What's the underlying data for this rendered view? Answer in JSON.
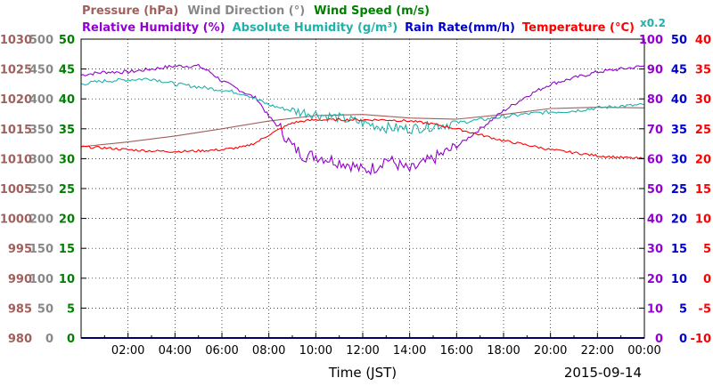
{
  "chart_data": {
    "type": "line",
    "legend": {
      "row1": [
        {
          "key": "pressure",
          "text": "Pressure (hPa)",
          "color": "#a0605c"
        },
        {
          "key": "wind_direction",
          "text": "Wind Direction (°)",
          "color": "#888888"
        },
        {
          "key": "wind_speed",
          "text": "Wind Speed (m/s)",
          "color": "#008000"
        }
      ],
      "row2": [
        {
          "key": "rh",
          "text": "Relative Humidity (%)",
          "color": "#9400d3"
        },
        {
          "key": "ah",
          "text": "Absolute Humidity (g/m³)",
          "color": "#20b2aa"
        },
        {
          "key": "rain",
          "text": "Rain Rate(mm/h)",
          "color": "#0000cc"
        },
        {
          "key": "temp",
          "text": "Temperature (°C)",
          "color": "#ff0000"
        }
      ],
      "ah_scale_note": "x0.2"
    },
    "xlabel": "Time (JST)",
    "date": "2015-09-14",
    "xlim": [
      0,
      24
    ],
    "x_tick_labels": [
      "02:00",
      "04:00",
      "06:00",
      "08:00",
      "10:00",
      "12:00",
      "14:00",
      "16:00",
      "18:00",
      "20:00",
      "22:00",
      "00:00"
    ],
    "grid": true,
    "axes": {
      "pressure": {
        "ticks": [
          "980",
          "985",
          "990",
          "995",
          "1000",
          "1005",
          "1010",
          "1015",
          "1020",
          "1025",
          "1030"
        ],
        "color": "#a0605c"
      },
      "wind_direction": {
        "ticks": [
          "0",
          "50",
          "100",
          "150",
          "200",
          "250",
          "300",
          "350",
          "400",
          "450",
          "500"
        ],
        "color": "#888888"
      },
      "wind_speed": {
        "ticks": [
          "0",
          "5",
          "10",
          "15",
          "20",
          "25",
          "30",
          "35",
          "40",
          "45",
          "50"
        ],
        "color": "#008000"
      },
      "rh": {
        "ticks": [
          "0",
          "10",
          "20",
          "30",
          "40",
          "50",
          "60",
          "70",
          "80",
          "90",
          "100"
        ],
        "color": "#9400d3"
      },
      "rain": {
        "ticks": [
          "0",
          "5",
          "10",
          "15",
          "20",
          "25",
          "30",
          "35",
          "40",
          "45",
          "50"
        ],
        "color": "#0000cc"
      },
      "temp": {
        "ticks": [
          "-10",
          "-5",
          "0",
          "5",
          "10",
          "15",
          "20",
          "25",
          "30",
          "35",
          "40"
        ],
        "color": "#ff0000"
      }
    },
    "series": [
      {
        "key": "pressure",
        "color": "#a0605c",
        "ylim": [
          980,
          1030
        ],
        "x": [
          0,
          2,
          4,
          6,
          8,
          10,
          12,
          14,
          16,
          18,
          20,
          22,
          24
        ],
        "y": [
          1012,
          1012.8,
          1013.8,
          1015,
          1016.3,
          1017.2,
          1017.4,
          1016.8,
          1016.6,
          1017.4,
          1018.4,
          1018.6,
          1018.5
        ]
      },
      {
        "key": "rh",
        "color": "#9400d3",
        "ylim": [
          0,
          100
        ],
        "x": [
          0,
          1,
          2,
          3,
          4,
          5,
          5.5,
          6,
          7,
          7.5,
          8,
          8.5,
          9,
          9.5,
          10,
          11,
          11.5,
          12,
          12.5,
          13,
          13.5,
          14,
          14.5,
          15,
          16,
          17,
          18,
          19,
          20,
          21,
          22,
          23,
          24
        ],
        "y": [
          88,
          89,
          89,
          90,
          91,
          91,
          89,
          86,
          82,
          80,
          74,
          70,
          64,
          61,
          61,
          59,
          58,
          56,
          57,
          60,
          58,
          56,
          58,
          60,
          64,
          70,
          76,
          81,
          85,
          87,
          89,
          90,
          91
        ]
      },
      {
        "key": "ah",
        "color": "#20b2aa",
        "ylim": [
          0,
          50
        ],
        "x": [
          0,
          1,
          2,
          3,
          4,
          5,
          6,
          7,
          8,
          9,
          10,
          11,
          12,
          13,
          14,
          15,
          16,
          17,
          18,
          19,
          20,
          21,
          22,
          23,
          24
        ],
        "y": [
          42.5,
          43,
          43.2,
          43.4,
          42.5,
          42,
          41.5,
          40.8,
          39,
          38,
          37.5,
          36.8,
          36,
          35.2,
          35,
          35.5,
          36,
          36.5,
          37,
          37.5,
          37.8,
          38,
          38.5,
          38.8,
          39
        ]
      },
      {
        "key": "temp",
        "color": "#ff0000",
        "ylim": [
          -10,
          40
        ],
        "x": [
          0,
          1,
          2,
          3,
          4,
          5,
          6,
          7,
          7.5,
          8,
          8.5,
          9,
          9.5,
          10,
          11,
          12,
          13,
          14,
          15,
          16,
          17,
          18,
          19,
          20,
          21,
          22,
          23,
          24
        ],
        "y": [
          22,
          21.8,
          21.5,
          21.3,
          21.2,
          21.3,
          21.5,
          22,
          22.8,
          24,
          25,
          26,
          26.3,
          26.5,
          26.5,
          26.5,
          26.5,
          26.3,
          25.8,
          25,
          24,
          23,
          22.3,
          21.5,
          21,
          20.5,
          20.2,
          20
        ]
      },
      {
        "key": "rain",
        "color": "#0000cc",
        "ylim": [
          0,
          50
        ],
        "x": [
          0,
          24
        ],
        "y": [
          0,
          0
        ]
      }
    ]
  }
}
